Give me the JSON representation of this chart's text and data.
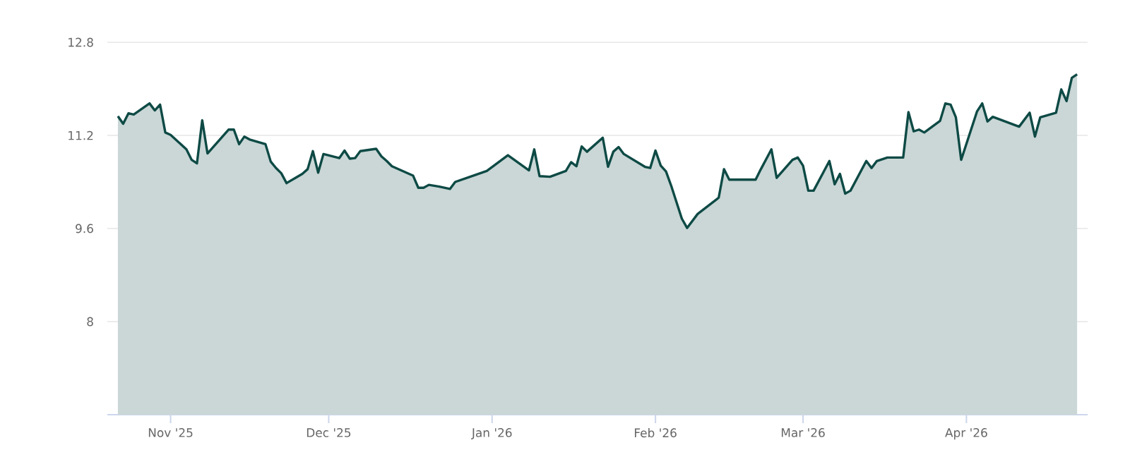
{
  "chart_data": {
    "type": "area",
    "x": [
      "2025-10-22",
      "2025-10-23",
      "2025-10-24",
      "2025-10-25",
      "2025-10-28",
      "2025-10-29",
      "2025-10-30",
      "2025-10-31",
      "2025-11-01",
      "2025-11-04",
      "2025-11-05",
      "2025-11-06",
      "2025-11-07",
      "2025-11-08",
      "2025-11-12",
      "2025-11-13",
      "2025-11-14",
      "2025-11-15",
      "2025-11-16",
      "2025-11-19",
      "2025-11-20",
      "2025-11-21",
      "2025-11-22",
      "2025-11-23",
      "2025-11-26",
      "2025-11-27",
      "2025-11-28",
      "2025-11-29",
      "2025-11-30",
      "2025-12-03",
      "2025-12-04",
      "2025-12-05",
      "2025-12-06",
      "2025-12-07",
      "2025-12-10",
      "2025-12-11",
      "2025-12-12",
      "2025-12-13",
      "2025-12-17",
      "2025-12-18",
      "2025-12-19",
      "2025-12-20",
      "2025-12-22",
      "2025-12-24",
      "2025-12-25",
      "2025-12-31",
      "2026-01-04",
      "2026-01-08",
      "2026-01-09",
      "2026-01-10",
      "2026-01-12",
      "2026-01-15",
      "2026-01-16",
      "2026-01-17",
      "2026-01-18",
      "2026-01-19",
      "2026-01-22",
      "2026-01-23",
      "2026-01-24",
      "2026-01-25",
      "2026-01-26",
      "2026-01-30",
      "2026-01-31",
      "2026-02-01",
      "2026-02-02",
      "2026-02-03",
      "2026-02-04",
      "2026-02-06",
      "2026-02-07",
      "2026-02-09",
      "2026-02-13",
      "2026-02-14",
      "2026-02-15",
      "2026-02-20",
      "2026-02-21",
      "2026-02-23",
      "2026-02-24",
      "2026-02-27",
      "2026-02-28",
      "2026-03-01",
      "2026-03-02",
      "2026-03-03",
      "2026-03-06",
      "2026-03-07",
      "2026-03-08",
      "2026-03-09",
      "2026-03-10",
      "2026-03-13",
      "2026-03-14",
      "2026-03-15",
      "2026-03-17",
      "2026-03-20",
      "2026-03-21",
      "2026-03-22",
      "2026-03-23",
      "2026-03-24",
      "2026-03-27",
      "2026-03-28",
      "2026-03-29",
      "2026-03-30",
      "2026-03-31",
      "2026-04-03",
      "2026-04-04",
      "2026-04-05",
      "2026-04-06",
      "2026-04-11",
      "2026-04-13",
      "2026-04-14",
      "2026-04-15",
      "2026-04-18",
      "2026-04-19",
      "2026-04-20",
      "2026-04-21",
      "2026-04-22"
    ],
    "series": [
      {
        "color": "#0e4a45",
        "values": [
          11.53,
          11.4,
          11.58,
          11.56,
          11.75,
          11.63,
          11.73,
          11.25,
          11.21,
          10.96,
          10.78,
          10.72,
          11.46,
          10.89,
          11.3,
          11.3,
          11.05,
          11.18,
          11.13,
          11.05,
          10.75,
          10.64,
          10.55,
          10.38,
          10.54,
          10.62,
          10.93,
          10.56,
          10.88,
          10.81,
          10.94,
          10.8,
          10.81,
          10.93,
          10.97,
          10.84,
          10.76,
          10.67,
          10.51,
          10.3,
          10.3,
          10.35,
          10.32,
          10.28,
          10.4,
          10.59,
          10.86,
          10.6,
          10.96,
          10.5,
          10.49,
          10.59,
          10.74,
          10.67,
          11.01,
          10.92,
          11.16,
          10.66,
          10.92,
          11.0,
          10.88,
          10.66,
          10.64,
          10.94,
          10.68,
          10.58,
          10.33,
          9.77,
          9.61,
          9.85,
          10.13,
          10.62,
          10.44,
          10.44,
          10.62,
          10.96,
          10.47,
          10.78,
          10.82,
          10.68,
          10.25,
          10.25,
          10.76,
          10.36,
          10.54,
          10.2,
          10.25,
          10.76,
          10.64,
          10.76,
          10.82,
          10.82,
          11.6,
          11.27,
          11.3,
          11.25,
          11.45,
          11.75,
          11.73,
          11.51,
          10.78,
          11.61,
          11.75,
          11.44,
          11.52,
          11.35,
          11.59,
          11.18,
          11.51,
          11.59,
          11.99,
          11.79,
          12.19,
          12.25
        ]
      }
    ],
    "xlim": [
      "2025-10-20",
      "2026-04-24"
    ],
    "xticks": [
      {
        "value": "2025-11-01",
        "label": "Nov '25"
      },
      {
        "value": "2025-12-01",
        "label": "Dec '25"
      },
      {
        "value": "2026-01-01",
        "label": "Jan '26"
      },
      {
        "value": "2026-02-01",
        "label": "Feb '26"
      },
      {
        "value": "2026-03-01",
        "label": "Mar '26"
      },
      {
        "value": "2026-04-01",
        "label": "Apr '26"
      }
    ],
    "ylim": [
      6.4,
      12.8
    ],
    "yticks": [
      8,
      9.6,
      11.2,
      12.8
    ],
    "grid": "y",
    "line_style": "solid",
    "marker": "none"
  }
}
